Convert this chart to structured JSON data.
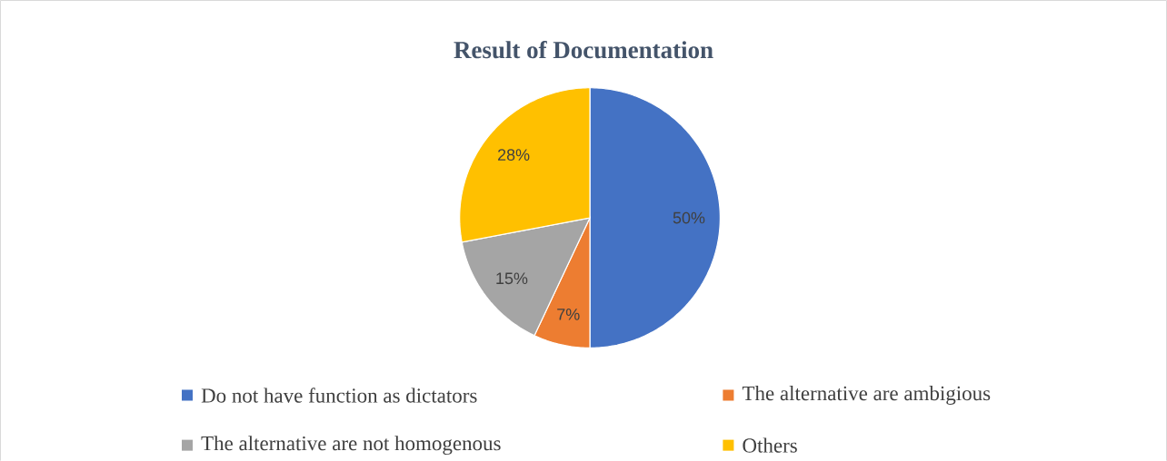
{
  "chart_data": {
    "type": "pie",
    "title": "Result of Documentation",
    "categories": [
      "Do not have function as dictators",
      "The alternative are ambigious",
      "The alternative are not homogenous",
      "Others"
    ],
    "values": [
      50,
      7,
      15,
      28
    ],
    "colors": [
      "#4472c4",
      "#ed7d31",
      "#a5a5a5",
      "#ffc000"
    ],
    "value_labels": [
      "50%",
      "7%",
      "15%",
      "28%"
    ],
    "legend": "bottom"
  }
}
